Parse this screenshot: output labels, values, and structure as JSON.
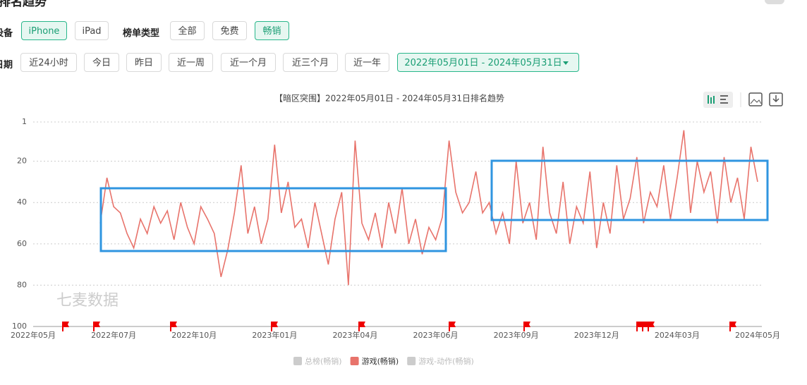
{
  "header": {
    "title": "排名趋势"
  },
  "filters": {
    "device": {
      "label": "设备",
      "options": [
        "iPhone",
        "iPad"
      ]
    },
    "list_type": {
      "label": "榜单类型",
      "options": [
        "全部",
        "免费",
        "畅销"
      ]
    },
    "date": {
      "label": "日期",
      "options": [
        "近24小时",
        "今日",
        "昨日",
        "近一周",
        "近一个月",
        "近三个月",
        "近一年"
      ],
      "range": "2022年05月01日 - 2024年05月31日"
    }
  },
  "chart_data": {
    "type": "line",
    "title": "【暗区突围】2022年05月01日 - 2024年05月31日排名趋势",
    "watermark": "七麦数据",
    "categories": [
      "2022年05月",
      null,
      null,
      null,
      null,
      null,
      null,
      null,
      null,
      null,
      null,
      null,
      "2022年07月",
      null,
      null,
      null,
      null,
      null,
      null,
      null,
      null,
      null,
      null,
      null,
      "2022年10月",
      null,
      null,
      null,
      null,
      null,
      null,
      null,
      null,
      null,
      null,
      null,
      "2023年01月",
      null,
      null,
      null,
      null,
      null,
      null,
      null,
      null,
      null,
      null,
      null,
      "2023年04月",
      null,
      null,
      null,
      null,
      null,
      null,
      null,
      null,
      null,
      null,
      null,
      "2023年06月",
      null,
      null,
      null,
      null,
      null,
      null,
      null,
      null,
      null,
      null,
      null,
      "2023年09月",
      null,
      null,
      null,
      null,
      null,
      null,
      null,
      null,
      null,
      null,
      null,
      "2023年12月",
      null,
      null,
      null,
      null,
      null,
      null,
      null,
      null,
      null,
      null,
      null,
      "2024年03月",
      null,
      null,
      null,
      null,
      null,
      null,
      null,
      null,
      null,
      null,
      null,
      "2024年05月"
    ],
    "series": [
      {
        "name": "游戏(畅销)",
        "color": "#e8736b",
        "values": [
          null,
          null,
          null,
          null,
          null,
          null,
          null,
          null,
          null,
          null,
          50,
          28,
          42,
          45,
          55,
          62,
          48,
          55,
          42,
          50,
          44,
          58,
          40,
          52,
          60,
          42,
          48,
          55,
          76,
          63,
          45,
          22,
          55,
          42,
          60,
          48,
          12,
          45,
          30,
          52,
          48,
          62,
          40,
          55,
          70,
          48,
          35,
          80,
          10,
          50,
          58,
          45,
          62,
          40,
          55,
          33,
          60,
          48,
          65,
          52,
          58,
          47,
          10,
          35,
          45,
          40,
          25,
          45,
          40,
          55,
          45,
          60,
          20,
          50,
          40,
          58,
          13,
          45,
          55,
          30,
          60,
          42,
          50,
          25,
          62,
          40,
          55,
          22,
          48,
          38,
          18,
          50,
          35,
          42,
          22,
          48,
          28,
          5,
          45,
          20,
          35,
          25,
          50,
          18,
          40,
          28,
          48,
          13,
          30
        ]
      }
    ],
    "legend_inactive": [
      {
        "name": "总榜(畅销)",
        "color": "#cccccc"
      },
      {
        "name": "游戏-动作(畅销)",
        "color": "#cccccc"
      }
    ],
    "ylim": [
      100,
      1
    ],
    "yticks": [
      1,
      20,
      40,
      60,
      80,
      100
    ],
    "grid": true
  }
}
